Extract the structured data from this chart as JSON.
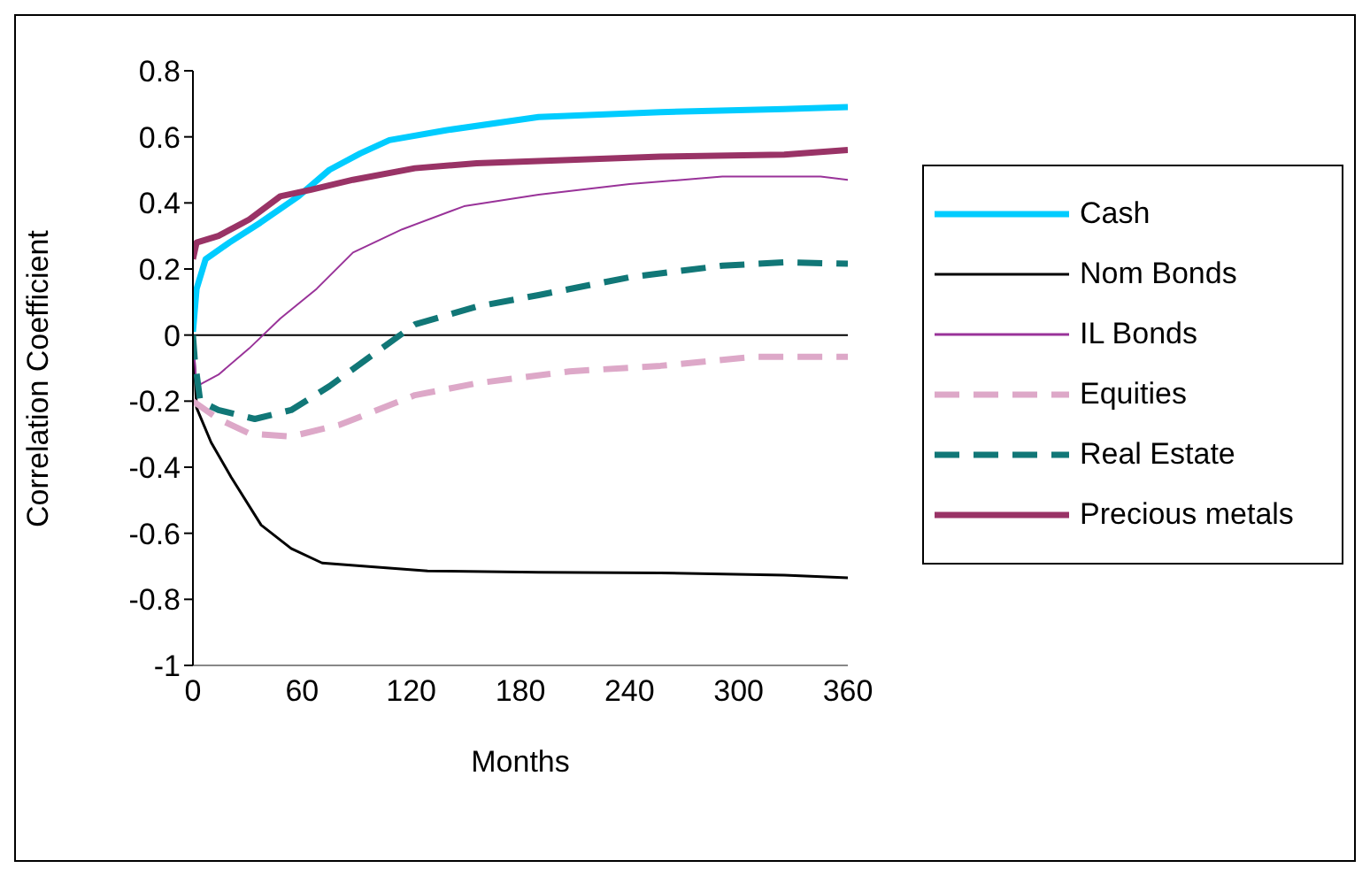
{
  "chart_data": {
    "type": "line",
    "xlabel": "Months",
    "ylabel": "Correlation Coefficient",
    "xlim": [
      0,
      360
    ],
    "xticks": [
      0,
      60,
      120,
      180,
      240,
      300,
      360
    ],
    "ylim": [
      -1,
      0.8
    ],
    "yticks": [
      -1,
      -0.8,
      -0.6,
      -0.4,
      -0.2,
      0,
      0.2,
      0.4,
      0.6,
      0.8
    ],
    "grid": false,
    "legend": "right",
    "marker": "none",
    "ref_lines": [
      {
        "axis": "y",
        "value": 0,
        "color": "#000000"
      }
    ],
    "series": [
      {
        "name": "Cash",
        "color": "#00ccff",
        "line_style": "solid",
        "x": [
          0,
          2,
          7,
          20,
          37,
          58,
          75,
          92,
          108,
          139,
          190,
          257,
          325,
          360
        ],
        "values": [
          0.01,
          0.14,
          0.23,
          0.28,
          0.34,
          0.42,
          0.5,
          0.55,
          0.59,
          0.62,
          0.66,
          0.675,
          0.684,
          0.69
        ]
      },
      {
        "name": "Nom Bonds",
        "color": "#000000",
        "line_style": "solid",
        "x": [
          0,
          2,
          10,
          21,
          37.5,
          54,
          71,
          95,
          129,
          190,
          257,
          325,
          360
        ],
        "values": [
          0,
          -0.22,
          -0.325,
          -0.43,
          -0.575,
          -0.646,
          -0.69,
          -0.7,
          -0.714,
          -0.718,
          -0.72,
          -0.727,
          -0.735
        ]
      },
      {
        "name": "IL Bonds",
        "color": "#993399",
        "line_style": "solid",
        "x": [
          0,
          2,
          14,
          31,
          48,
          68,
          88,
          115,
          149,
          190,
          240,
          291,
          345,
          360
        ],
        "values": [
          0,
          -0.155,
          -0.12,
          -0.04,
          0.05,
          0.14,
          0.25,
          0.32,
          0.39,
          0.425,
          0.457,
          0.48,
          0.48,
          0.47
        ]
      },
      {
        "name": "Equities",
        "color": "#dda8c8",
        "line_style": "dashed",
        "x": [
          0,
          14,
          31,
          54,
          81,
          122,
          156,
          207,
          257,
          308,
          360
        ],
        "values": [
          -0.2,
          -0.254,
          -0.298,
          -0.307,
          -0.271,
          -0.182,
          -0.146,
          -0.11,
          -0.093,
          -0.066,
          -0.066
        ]
      },
      {
        "name": "Real Estate",
        "color": "#117777",
        "line_style": "dashed",
        "x": [
          0,
          1,
          4,
          14,
          34,
          54,
          75,
          95,
          122,
          156,
          190,
          240,
          291,
          325,
          360
        ],
        "values": [
          0,
          -0.075,
          -0.2,
          -0.227,
          -0.254,
          -0.227,
          -0.155,
          -0.075,
          0.032,
          0.086,
          0.121,
          0.175,
          0.21,
          0.22,
          0.216
        ]
      },
      {
        "name": "Precious metals",
        "color": "#993366",
        "line_style": "solid",
        "x": [
          0,
          2,
          14,
          31,
          48,
          65,
          88,
          122,
          156,
          207,
          257,
          325,
          360
        ],
        "values": [
          0.23,
          0.28,
          0.3,
          0.35,
          0.42,
          0.44,
          0.47,
          0.505,
          0.52,
          0.53,
          0.54,
          0.546,
          0.56
        ]
      }
    ]
  }
}
